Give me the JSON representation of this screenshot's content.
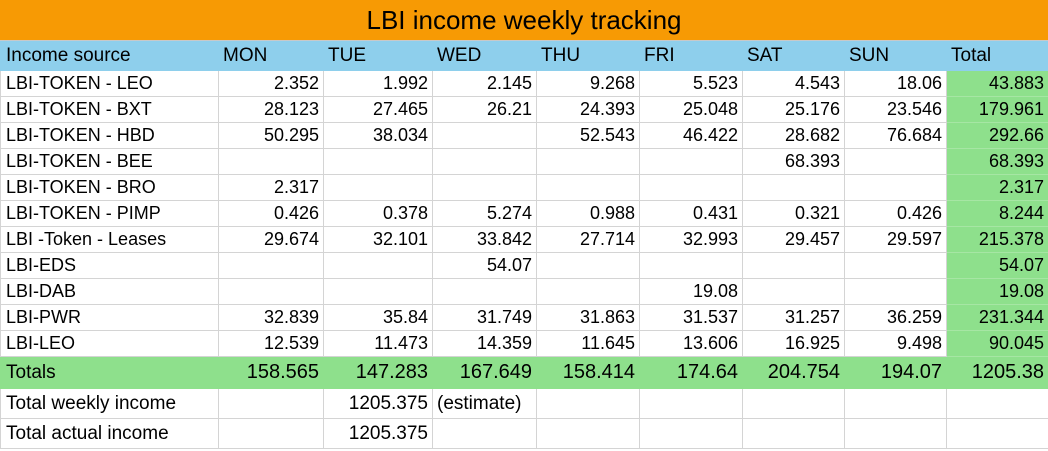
{
  "title": "LBI income weekly tracking",
  "header": [
    "Income source",
    "MON",
    "TUE",
    "WED",
    "THU",
    "FRI",
    "SAT",
    "SUN",
    "Total"
  ],
  "rows": [
    [
      "LBI-TOKEN - LEO",
      "2.352",
      "1.992",
      "2.145",
      "9.268",
      "5.523",
      "4.543",
      "18.06",
      "43.883"
    ],
    [
      "LBI-TOKEN - BXT",
      "28.123",
      "27.465",
      "26.21",
      "24.393",
      "25.048",
      "25.176",
      "23.546",
      "179.961"
    ],
    [
      "LBI-TOKEN - HBD",
      "50.295",
      "38.034",
      "",
      "52.543",
      "46.422",
      "28.682",
      "76.684",
      "292.66"
    ],
    [
      "LBI-TOKEN - BEE",
      "",
      "",
      "",
      "",
      "",
      "68.393",
      "",
      "68.393"
    ],
    [
      "LBI-TOKEN - BRO",
      "2.317",
      "",
      "",
      "",
      "",
      "",
      "",
      "2.317"
    ],
    [
      "LBI-TOKEN - PIMP",
      "0.426",
      "0.378",
      "5.274",
      "0.988",
      "0.431",
      "0.321",
      "0.426",
      "8.244"
    ],
    [
      "LBI -Token - Leases",
      "29.674",
      "32.101",
      "33.842",
      "27.714",
      "32.993",
      "29.457",
      "29.597",
      "215.378"
    ],
    [
      "LBI-EDS",
      "",
      "",
      "54.07",
      "",
      "",
      "",
      "",
      "54.07"
    ],
    [
      "LBI-DAB",
      "",
      "",
      "",
      "",
      "19.08",
      "",
      "",
      "19.08"
    ],
    [
      "LBI-PWR",
      "32.839",
      "35.84",
      "31.749",
      "31.863",
      "31.537",
      "31.257",
      "36.259",
      "231.344"
    ],
    [
      "LBI-LEO",
      "12.539",
      "11.473",
      "14.359",
      "11.645",
      "13.606",
      "16.925",
      "9.498",
      "90.045"
    ]
  ],
  "totals": [
    "Totals",
    "158.565",
    "147.283",
    "167.649",
    "158.414",
    "174.64",
    "204.754",
    "194.07",
    "1205.38"
  ],
  "summary": {
    "weekly_label": "Total weekly income",
    "weekly_value": "1205.375",
    "weekly_note": "(estimate)",
    "actual_label": "Total actual income",
    "actual_value": "1205.375"
  }
}
